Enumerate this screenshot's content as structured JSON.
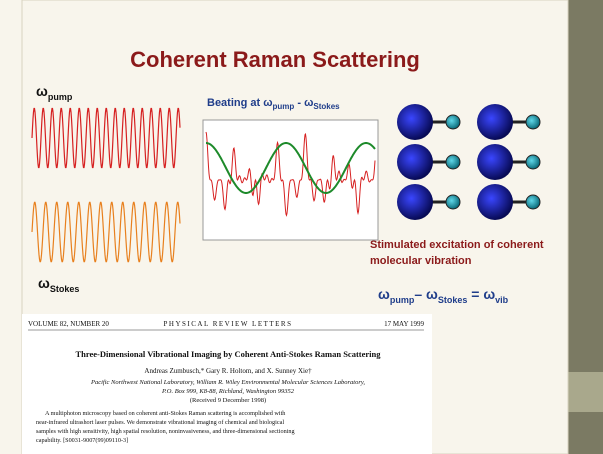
{
  "slide": {
    "title": "Coherent Raman Scattering",
    "omega_pump": {
      "symbol": "ω",
      "sub": "pump"
    },
    "beating": {
      "text": "Beating at ω",
      "sub1": "pump",
      "mid": " - ω",
      "sub2": "Stokes"
    },
    "omega_stokes": {
      "symbol": "ω",
      "sub": "Stokes"
    },
    "caption": [
      "Stimulated excitation of coherent",
      "molecular vibration"
    ],
    "equation": {
      "a": "ω",
      "sub1": "pump",
      "b": "– ω",
      "sub2": "Stokes",
      "c": " = ω",
      "sub3": "vib"
    }
  },
  "paper": {
    "volume": "VOLUME 82, NUMBER 20",
    "journal": "PHYSICAL REVIEW LETTERS",
    "date": "17 MAY 1999",
    "title": "Three-Dimensional Vibrational Imaging by Coherent Anti-Stokes Raman Scattering",
    "authors": "Andreas Zumbusch,* Gary R. Holtom, and X. Sunney Xie†",
    "affiliation": [
      "Pacific Northwest National Laboratory, William R. Wiley Environmental Molecular Sciences Laboratory,",
      "P.O. Box 999, K8-88, Richland, Washington 99352"
    ],
    "received": "(Received 9 December 1998)",
    "abstract": [
      "A multiphoton microscopy based on coherent anti-Stokes Raman scattering is accomplished with",
      "near-infrared ultrashort laser pulses. We demonstrate vibrational imaging of chemical and biological",
      "samples with high sensitivity, high spatial resolution, noninvasiveness, and three-dimensional sectioning",
      "capability. [S0031-9007(99)09110-3]"
    ]
  }
}
